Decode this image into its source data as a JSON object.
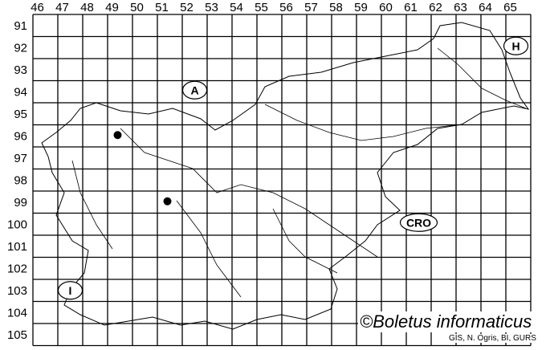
{
  "map": {
    "columns": [
      "46",
      "47",
      "48",
      "49",
      "50",
      "51",
      "52",
      "53",
      "54",
      "55",
      "56",
      "57",
      "58",
      "59",
      "60",
      "61",
      "62",
      "63",
      "64",
      "65"
    ],
    "rows": [
      "91",
      "92",
      "93",
      "94",
      "95",
      "96",
      "97",
      "98",
      "99",
      "100",
      "101",
      "102",
      "103",
      "104",
      "105"
    ],
    "country_labels": [
      {
        "text": "A",
        "col": "52",
        "row": "94"
      },
      {
        "text": "H",
        "col": "65",
        "row": "92"
      },
      {
        "text": "CRO",
        "col": "61",
        "row": "100"
      },
      {
        "text": "I",
        "col": "47",
        "row": "103"
      }
    ],
    "records": [
      {
        "col": "49",
        "row": "96"
      },
      {
        "col": "51",
        "row": "99"
      }
    ],
    "line_color": "#000000",
    "record_color": "#000000"
  },
  "credit": "©Boletus informaticus",
  "source": "GIS, N. Ogris, BI, GURS"
}
